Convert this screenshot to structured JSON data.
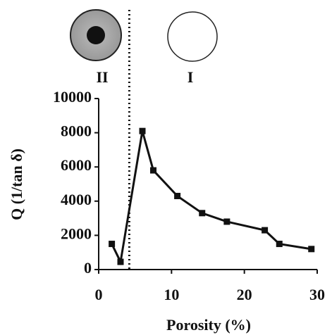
{
  "chart_data": {
    "type": "line",
    "x_label": "Porosity (%)",
    "y_label": "Q (1/tan δ)",
    "region_labels": [
      "II",
      "I"
    ],
    "divider_x": 4.2,
    "series": [
      {
        "color": "#111111",
        "x": [
          1.8,
          3.0,
          6.0,
          7.5,
          10.8,
          14.2,
          17.6,
          22.8,
          24.8,
          29.2
        ],
        "values": [
          1500,
          450,
          8100,
          5800,
          4300,
          3300,
          2800,
          2300,
          1500,
          1200
        ]
      }
    ],
    "xlim": [
      0,
      30
    ],
    "xticks": [
      0,
      10,
      20,
      30
    ],
    "ylim": [
      0,
      10000
    ],
    "yticks": [
      0,
      2000,
      4000,
      6000,
      8000,
      10000
    ]
  }
}
